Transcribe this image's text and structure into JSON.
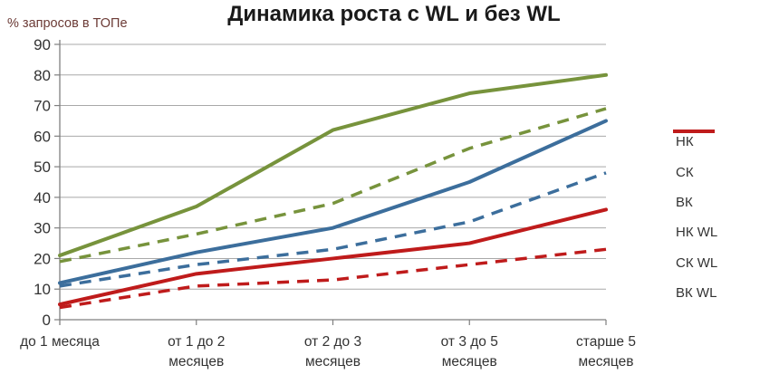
{
  "title": "Динамика роста с WL и без WL",
  "y_axis_label": "% запросов в ТОПе",
  "chart_data": {
    "type": "line",
    "categories": [
      "до 1 месяца",
      "от 1 до 2 месяцев",
      "от 2 до 3 месяцев",
      "от 3 до 5 месяцев",
      "старше 5 месяцев"
    ],
    "category_label_lines": [
      [
        "до 1 месяца"
      ],
      [
        "от 1 до 2",
        "месяцев"
      ],
      [
        "от 2 до 3",
        "месяцев"
      ],
      [
        "от 3 до 5",
        "месяцев"
      ],
      [
        "старше 5",
        "месяцев"
      ]
    ],
    "series": [
      {
        "name": "НК",
        "style": "dashed",
        "color": "#77933C",
        "values": [
          19,
          28,
          38,
          56,
          69
        ]
      },
      {
        "name": "СК",
        "style": "dashed",
        "color": "#3C6E9C",
        "values": [
          11,
          18,
          23,
          32,
          48
        ]
      },
      {
        "name": "ВК",
        "style": "dashed",
        "color": "#BF1B1B",
        "values": [
          4,
          11,
          13,
          18,
          23
        ]
      },
      {
        "name": "НК WL",
        "style": "solid",
        "color": "#77933C",
        "values": [
          21,
          37,
          62,
          74,
          80
        ]
      },
      {
        "name": "СК WL",
        "style": "solid",
        "color": "#3C6E9C",
        "values": [
          12,
          22,
          30,
          45,
          65
        ]
      },
      {
        "name": "ВК WL",
        "style": "solid",
        "color": "#BF1B1B",
        "values": [
          5,
          15,
          20,
          25,
          36
        ]
      }
    ],
    "xlabel": "",
    "ylabel": "% запросов в ТОПе",
    "ylim": [
      0,
      90
    ],
    "y_ticks": [
      0,
      10,
      20,
      30,
      40,
      50,
      60,
      70,
      80,
      90
    ],
    "grid": true,
    "legend_position": "right"
  },
  "colors": {
    "grid": "#A8A8A8",
    "axis": "#7F7F7F",
    "title": "#1A1A1A",
    "tick_label": "#333333",
    "y_axis_label_color": "#6B3A35"
  }
}
